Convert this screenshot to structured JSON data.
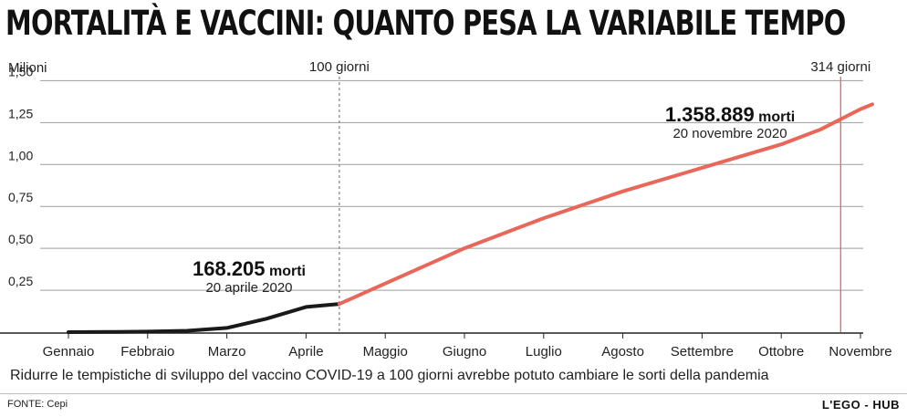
{
  "title": "MORTALITÀ E VACCINI: QUANTO PESA LA VARIABILE TEMPO",
  "caption": "Ridurre le tempistiche di sviluppo del vaccino COVID-19 a 100 giorni avrebbe potuto cambiare le sorti della pandemia",
  "source": "FONTE: Cepi",
  "brand": "L'EGO - HUB",
  "chart_data": {
    "type": "line",
    "ylabel": "Milioni",
    "ylim": [
      0,
      1.6
    ],
    "yticks": [
      {
        "value": 0.25,
        "label": "0,25"
      },
      {
        "value": 0.5,
        "label": "0,50"
      },
      {
        "value": 0.75,
        "label": "0,75"
      },
      {
        "value": 1.0,
        "label": "1,00"
      },
      {
        "value": 1.25,
        "label": "1,25"
      },
      {
        "value": 1.5,
        "label": "1,50"
      }
    ],
    "categories": [
      "Gennaio",
      "Febbraio",
      "Marzo",
      "Aprile",
      "Maggio",
      "Giugno",
      "Luglio",
      "Agosto",
      "Settembre",
      "Ottobre",
      "Novembre"
    ],
    "grid": true,
    "series": [
      {
        "color": "#1a1a1a",
        "points": [
          [
            0,
            0.0
          ],
          [
            0.5,
            0.001
          ],
          [
            1.0,
            0.003
          ],
          [
            1.5,
            0.008
          ],
          [
            2.0,
            0.025
          ],
          [
            2.5,
            0.08
          ],
          [
            3.0,
            0.15
          ],
          [
            3.42,
            0.168
          ]
        ]
      },
      {
        "color": "#e8675a",
        "points": [
          [
            3.42,
            0.168
          ],
          [
            4.0,
            0.29
          ],
          [
            5.0,
            0.5
          ],
          [
            6.0,
            0.68
          ],
          [
            7.0,
            0.84
          ],
          [
            8.0,
            0.98
          ],
          [
            9.0,
            1.12
          ],
          [
            9.5,
            1.21
          ],
          [
            10.0,
            1.33
          ],
          [
            10.15,
            1.359
          ]
        ]
      }
    ],
    "markers": [
      {
        "label": "100 giorni",
        "x": 3.42,
        "color": "#8a8a8a",
        "style": "dashed"
      },
      {
        "label": "314 giorni",
        "x": 9.75,
        "color": "#e8675a",
        "style": "solid"
      }
    ],
    "annotations": [
      {
        "value": "168.205",
        "unit": "morti",
        "date": "20 aprile 2020"
      },
      {
        "value": "1.358.889",
        "unit": "morti",
        "date": "20 novembre 2020"
      }
    ]
  }
}
